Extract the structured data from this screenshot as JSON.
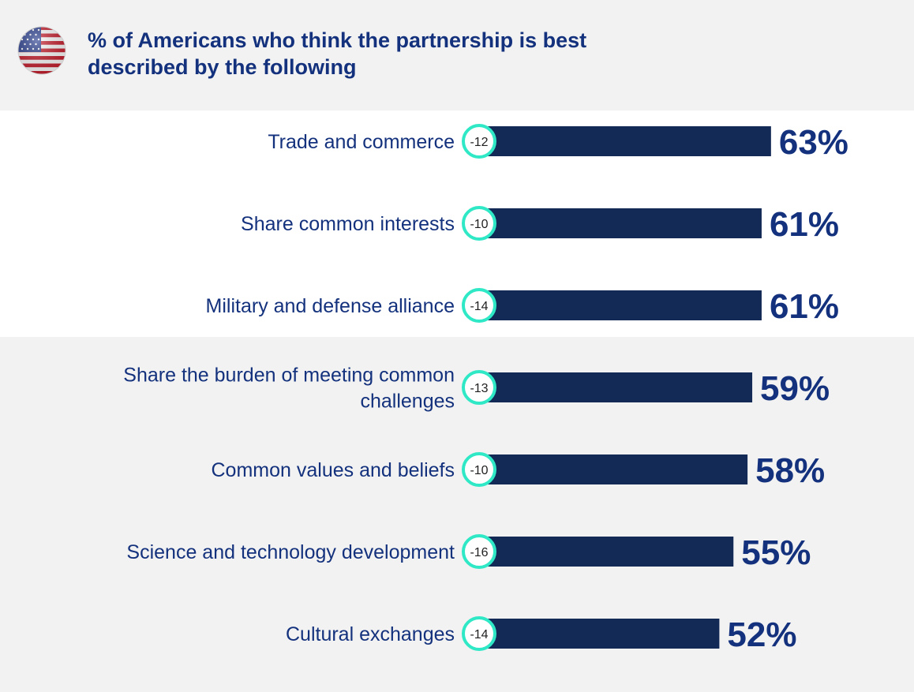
{
  "header": {
    "title_line1": "% of Americans who think the partnership is best",
    "title_line2": "described by the following"
  },
  "flag_icon": "us-flag-icon",
  "colors": {
    "bar": "#132a57",
    "label": "#13317c",
    "circle_border": "#2ee8c6",
    "background": "#f2f2f2",
    "highlight_band": "#ffffff"
  },
  "chart_data": {
    "type": "bar",
    "orientation": "horizontal",
    "title": "% of Americans who think the partnership is best described by the following",
    "value_suffix": "%",
    "categories": [
      [
        "Trade and commerce"
      ],
      [
        "Share common interests"
      ],
      [
        "Military and defense alliance"
      ],
      [
        "Share the burden of meeting common",
        "challenges"
      ],
      [
        "Common values and beliefs"
      ],
      [
        "Science and technology development"
      ],
      [
        "Cultural exchanges"
      ]
    ],
    "values": [
      63,
      61,
      61,
      59,
      58,
      55,
      52
    ],
    "value_labels": [
      "63%",
      "61%",
      "61%",
      "59%",
      "58%",
      "55%",
      "52%"
    ],
    "change_labels": [
      "-12",
      "-10",
      "-14",
      "-13",
      "-10",
      "-16",
      "-14"
    ]
  }
}
